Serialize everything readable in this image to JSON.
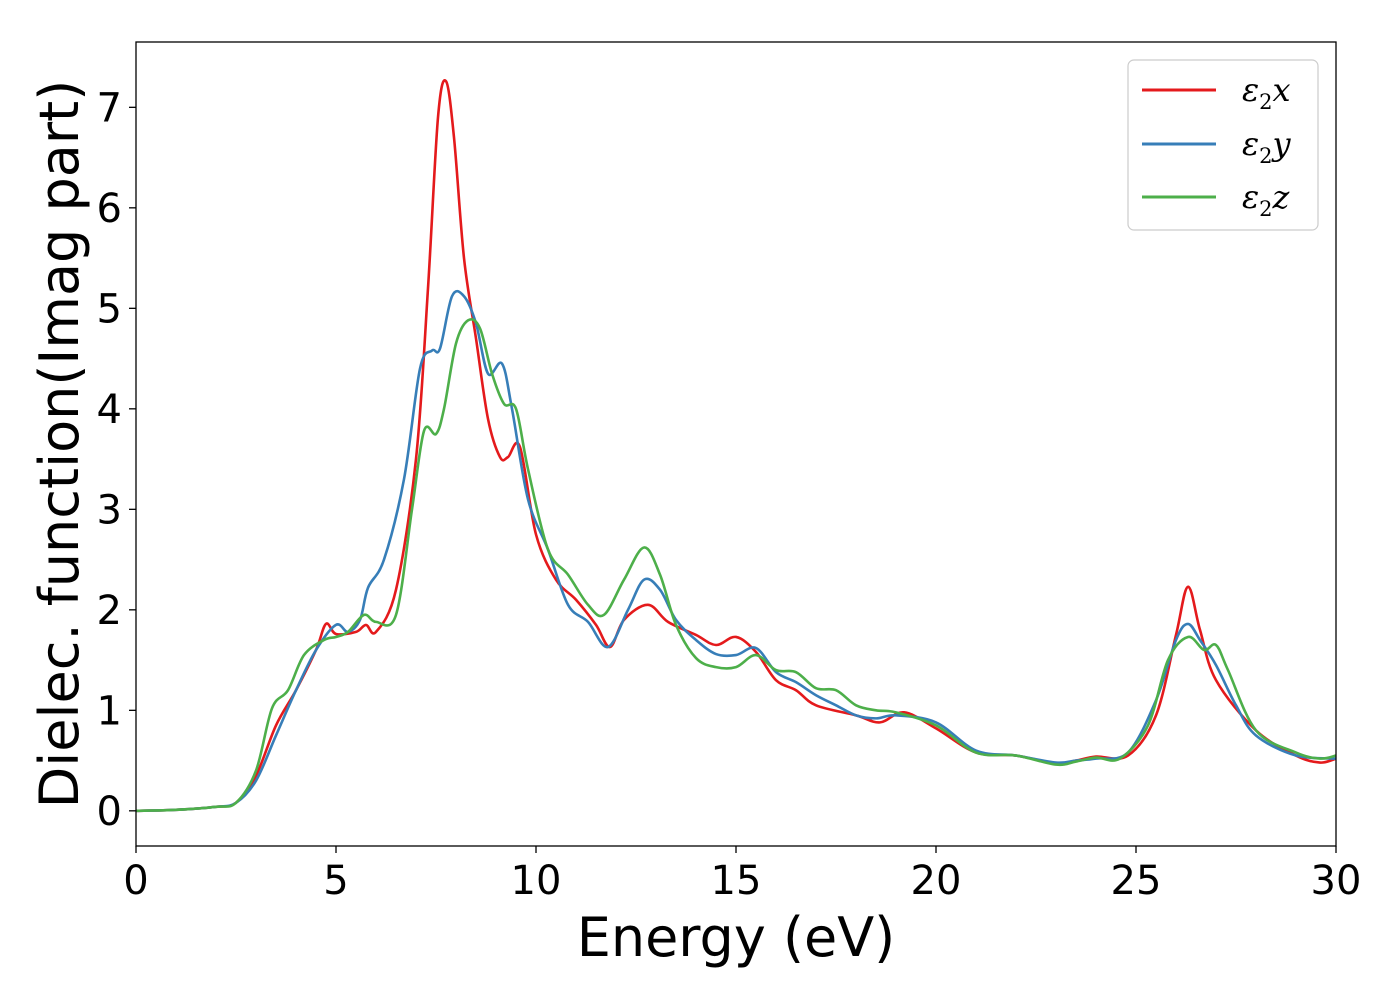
{
  "chart_data": {
    "type": "line",
    "title": "",
    "xlabel": "Energy (eV)",
    "ylabel": "Dielec. function(Imag part)",
    "xlim": [
      0,
      30
    ],
    "ylim": [
      -0.35,
      7.65
    ],
    "xticks": [
      0,
      5,
      10,
      15,
      20,
      25,
      30
    ],
    "xtick_labels": [
      "0",
      "5",
      "10",
      "15",
      "20",
      "25",
      "30"
    ],
    "yticks": [
      0,
      1,
      2,
      3,
      4,
      5,
      6,
      7
    ],
    "ytick_labels": [
      "0",
      "1",
      "2",
      "3",
      "4",
      "5",
      "6",
      "7"
    ],
    "grid": false,
    "legend_position": "top-right",
    "series": [
      {
        "name": "ε2x",
        "color": "#e41a1c",
        "points": [
          [
            0,
            0
          ],
          [
            1,
            0.01
          ],
          [
            2,
            0.04
          ],
          [
            2.5,
            0.08
          ],
          [
            3,
            0.35
          ],
          [
            3.5,
            0.85
          ],
          [
            4,
            1.2
          ],
          [
            4.5,
            1.6
          ],
          [
            4.75,
            1.86
          ],
          [
            5,
            1.76
          ],
          [
            5.5,
            1.78
          ],
          [
            5.75,
            1.85
          ],
          [
            6,
            1.78
          ],
          [
            6.5,
            2.2
          ],
          [
            7,
            3.5
          ],
          [
            7.3,
            5.2
          ],
          [
            7.55,
            6.9
          ],
          [
            7.75,
            7.26
          ],
          [
            7.95,
            6.7
          ],
          [
            8.2,
            5.5
          ],
          [
            8.5,
            4.7
          ],
          [
            8.8,
            3.9
          ],
          [
            9.1,
            3.52
          ],
          [
            9.3,
            3.52
          ],
          [
            9.6,
            3.62
          ],
          [
            10,
            2.75
          ],
          [
            10.5,
            2.3
          ],
          [
            11,
            2.1
          ],
          [
            11.5,
            1.85
          ],
          [
            11.85,
            1.63
          ],
          [
            12.2,
            1.9
          ],
          [
            12.8,
            2.05
          ],
          [
            13.3,
            1.88
          ],
          [
            14,
            1.75
          ],
          [
            14.5,
            1.65
          ],
          [
            15,
            1.73
          ],
          [
            15.5,
            1.58
          ],
          [
            16,
            1.3
          ],
          [
            16.5,
            1.2
          ],
          [
            17,
            1.05
          ],
          [
            18,
            0.95
          ],
          [
            18.6,
            0.88
          ],
          [
            19.2,
            0.98
          ],
          [
            20,
            0.82
          ],
          [
            21,
            0.58
          ],
          [
            22,
            0.55
          ],
          [
            23,
            0.47
          ],
          [
            23.5,
            0.5
          ],
          [
            24,
            0.54
          ],
          [
            24.8,
            0.55
          ],
          [
            25.5,
            0.95
          ],
          [
            26,
            1.75
          ],
          [
            26.3,
            2.23
          ],
          [
            26.6,
            1.8
          ],
          [
            27,
            1.3
          ],
          [
            28,
            0.8
          ],
          [
            29,
            0.55
          ],
          [
            29.6,
            0.48
          ],
          [
            30,
            0.52
          ]
        ]
      },
      {
        "name": "ε2y",
        "color": "#377eb8",
        "points": [
          [
            0,
            0
          ],
          [
            1,
            0.01
          ],
          [
            2,
            0.04
          ],
          [
            2.5,
            0.08
          ],
          [
            3,
            0.3
          ],
          [
            3.5,
            0.75
          ],
          [
            4,
            1.2
          ],
          [
            4.5,
            1.6
          ],
          [
            5,
            1.85
          ],
          [
            5.3,
            1.78
          ],
          [
            5.6,
            1.9
          ],
          [
            5.8,
            2.22
          ],
          [
            6.2,
            2.5
          ],
          [
            6.7,
            3.3
          ],
          [
            7.1,
            4.4
          ],
          [
            7.4,
            4.58
          ],
          [
            7.6,
            4.6
          ],
          [
            7.9,
            5.12
          ],
          [
            8.2,
            5.12
          ],
          [
            8.5,
            4.85
          ],
          [
            8.8,
            4.35
          ],
          [
            9.15,
            4.45
          ],
          [
            9.4,
            4.0
          ],
          [
            9.8,
            3.1
          ],
          [
            10.3,
            2.6
          ],
          [
            10.8,
            2.05
          ],
          [
            11.3,
            1.88
          ],
          [
            11.8,
            1.63
          ],
          [
            12.3,
            2.0
          ],
          [
            12.7,
            2.3
          ],
          [
            13.1,
            2.2
          ],
          [
            13.5,
            1.9
          ],
          [
            14,
            1.7
          ],
          [
            14.5,
            1.56
          ],
          [
            15,
            1.55
          ],
          [
            15.5,
            1.62
          ],
          [
            16,
            1.38
          ],
          [
            16.5,
            1.28
          ],
          [
            17,
            1.15
          ],
          [
            17.5,
            1.05
          ],
          [
            18,
            0.95
          ],
          [
            18.5,
            0.92
          ],
          [
            19,
            0.95
          ],
          [
            20,
            0.88
          ],
          [
            21,
            0.6
          ],
          [
            22,
            0.55
          ],
          [
            23,
            0.48
          ],
          [
            23.5,
            0.5
          ],
          [
            24,
            0.52
          ],
          [
            24.8,
            0.58
          ],
          [
            25.5,
            1.1
          ],
          [
            26,
            1.7
          ],
          [
            26.3,
            1.86
          ],
          [
            26.6,
            1.7
          ],
          [
            27,
            1.45
          ],
          [
            27.5,
            1.05
          ],
          [
            28,
            0.75
          ],
          [
            29,
            0.55
          ],
          [
            30,
            0.52
          ]
        ]
      },
      {
        "name": "ε2z",
        "color": "#4daf4a",
        "points": [
          [
            0,
            0
          ],
          [
            1,
            0.01
          ],
          [
            2,
            0.04
          ],
          [
            2.5,
            0.08
          ],
          [
            3,
            0.4
          ],
          [
            3.4,
            1.02
          ],
          [
            3.8,
            1.2
          ],
          [
            4.2,
            1.55
          ],
          [
            4.7,
            1.7
          ],
          [
            5,
            1.73
          ],
          [
            5.3,
            1.78
          ],
          [
            5.7,
            1.95
          ],
          [
            6,
            1.88
          ],
          [
            6.5,
            1.95
          ],
          [
            6.9,
            3.0
          ],
          [
            7.2,
            3.78
          ],
          [
            7.5,
            3.75
          ],
          [
            7.7,
            4.0
          ],
          [
            8,
            4.65
          ],
          [
            8.3,
            4.88
          ],
          [
            8.6,
            4.8
          ],
          [
            8.9,
            4.35
          ],
          [
            9.2,
            4.05
          ],
          [
            9.5,
            4.0
          ],
          [
            9.8,
            3.4
          ],
          [
            10.3,
            2.6
          ],
          [
            10.8,
            2.35
          ],
          [
            11.3,
            2.05
          ],
          [
            11.7,
            1.95
          ],
          [
            12.2,
            2.3
          ],
          [
            12.7,
            2.62
          ],
          [
            13.1,
            2.35
          ],
          [
            13.5,
            1.85
          ],
          [
            14,
            1.52
          ],
          [
            14.5,
            1.43
          ],
          [
            15,
            1.43
          ],
          [
            15.5,
            1.55
          ],
          [
            16,
            1.4
          ],
          [
            16.5,
            1.38
          ],
          [
            17,
            1.22
          ],
          [
            17.5,
            1.2
          ],
          [
            18,
            1.05
          ],
          [
            18.5,
            1.0
          ],
          [
            19,
            0.98
          ],
          [
            20,
            0.85
          ],
          [
            21,
            0.58
          ],
          [
            22,
            0.55
          ],
          [
            23,
            0.46
          ],
          [
            23.5,
            0.49
          ],
          [
            24,
            0.53
          ],
          [
            24.6,
            0.52
          ],
          [
            25.3,
            0.85
          ],
          [
            25.8,
            1.5
          ],
          [
            26.3,
            1.73
          ],
          [
            26.7,
            1.6
          ],
          [
            27,
            1.65
          ],
          [
            27.3,
            1.4
          ],
          [
            28,
            0.8
          ],
          [
            29,
            0.58
          ],
          [
            29.6,
            0.52
          ],
          [
            30,
            0.55
          ]
        ]
      }
    ]
  }
}
